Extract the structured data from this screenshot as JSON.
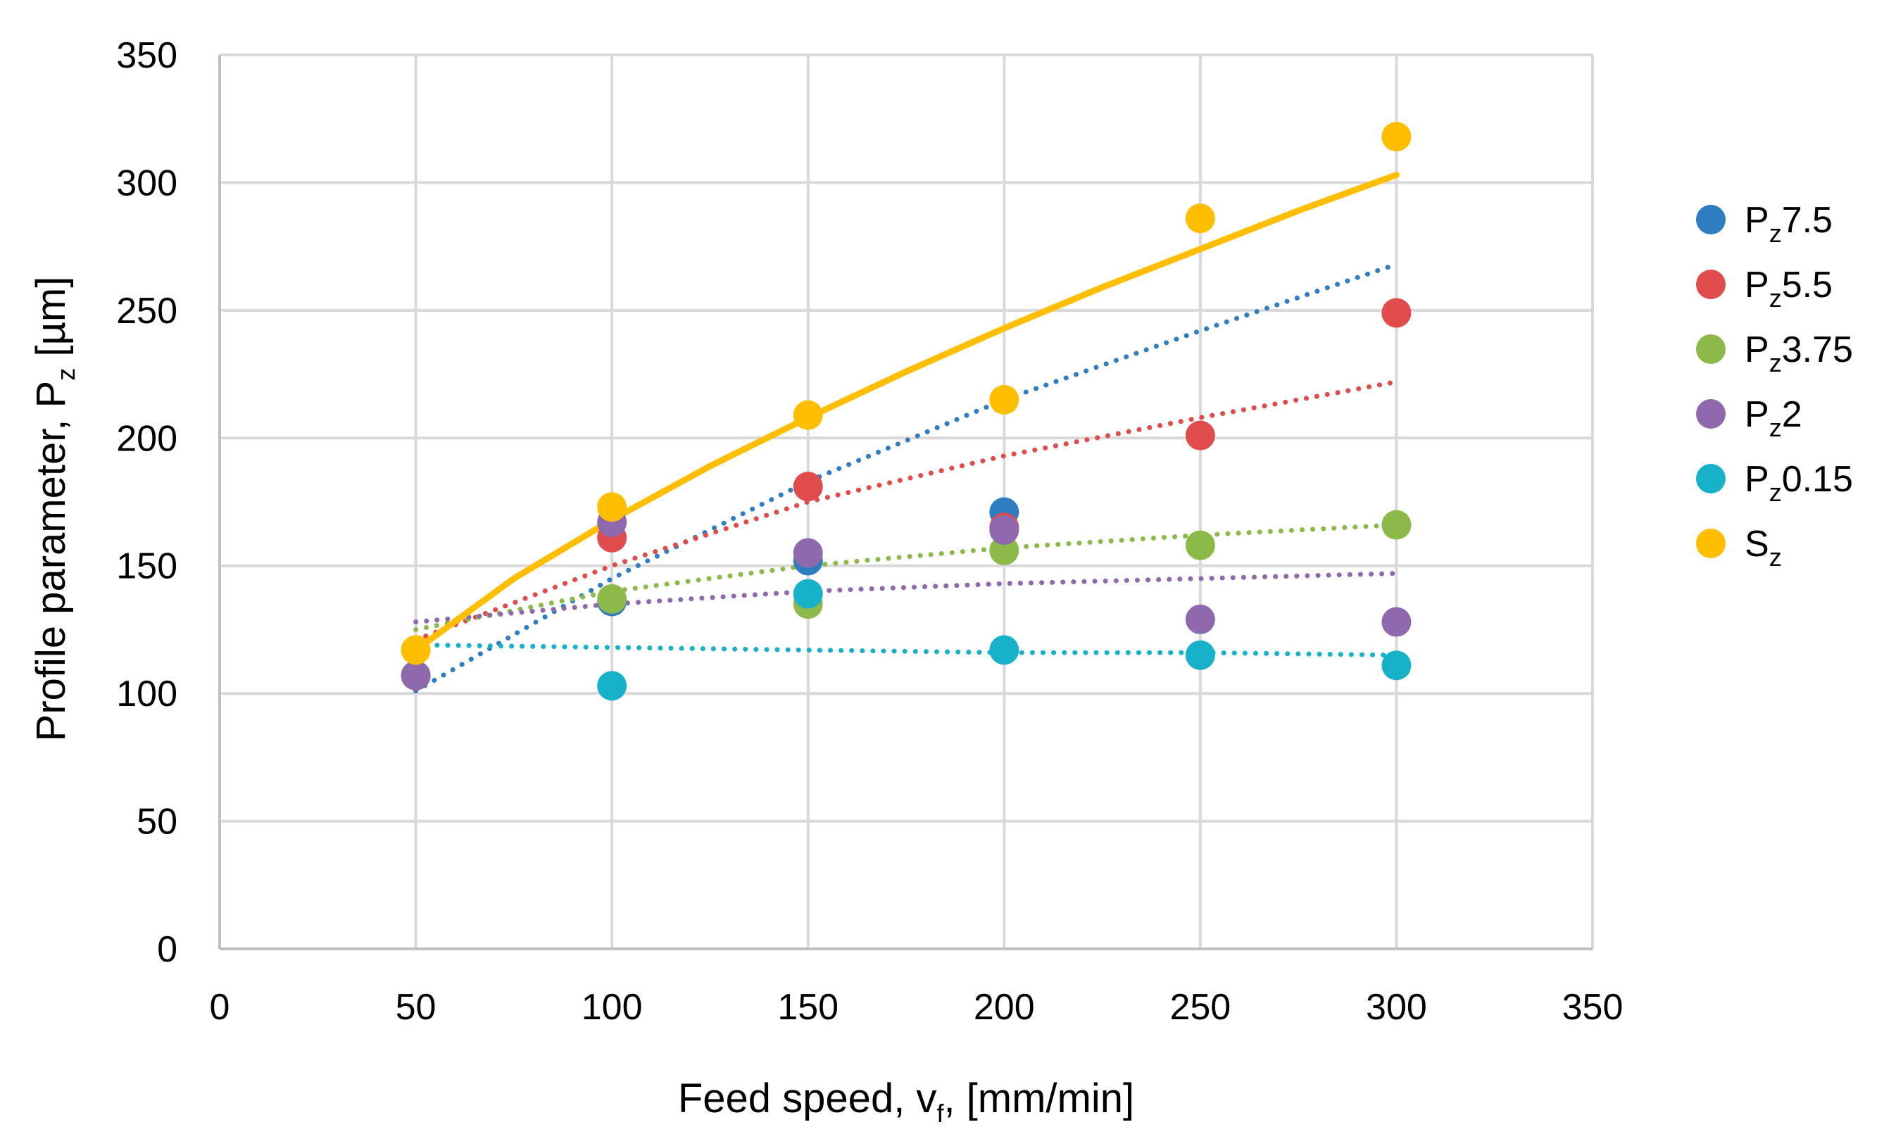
{
  "chart_data": {
    "type": "scatter",
    "title": "",
    "xlabel": {
      "main": "Feed speed, v",
      "sub": "f",
      "tail": ", [mm/min]"
    },
    "ylabel": {
      "main": "Profile parameter, P",
      "sub": "z",
      "tail": " [µm]"
    },
    "xlim": [
      0,
      350
    ],
    "ylim": [
      0,
      350
    ],
    "xticks": [
      0,
      50,
      100,
      150,
      200,
      250,
      300,
      350
    ],
    "yticks": [
      0,
      50,
      100,
      150,
      200,
      250,
      300,
      350
    ],
    "grid": true,
    "legend_position": "right",
    "series": [
      {
        "name": "Pz7.5",
        "label_main": "P",
        "label_sub": "z",
        "label_tail": "7.5",
        "color": "#2E7EC1",
        "x": [
          50,
          100,
          150,
          200
        ],
        "y": [
          107,
          136,
          152,
          171
        ],
        "trend": {
          "style": "dotted",
          "x": [
            50,
            100,
            150,
            200,
            250,
            300
          ],
          "y": [
            101,
            145,
            183,
            215,
            242,
            268
          ]
        }
      },
      {
        "name": "Pz5.5",
        "label_main": "P",
        "label_sub": "z",
        "label_tail": "5.5",
        "color": "#E04B4B",
        "x": [
          50,
          100,
          150,
          200,
          250,
          300
        ],
        "y": [
          107,
          161,
          181,
          165,
          201,
          249
        ],
        "trend": {
          "style": "dotted",
          "x": [
            50,
            100,
            150,
            200,
            250,
            300
          ],
          "y": [
            121,
            150,
            175,
            193,
            208,
            222
          ]
        }
      },
      {
        "name": "Pz3.75",
        "label_main": "P",
        "label_sub": "z",
        "label_tail": "3.75",
        "color": "#8BBA4A",
        "x": [
          50,
          100,
          150,
          200,
          250,
          300
        ],
        "y": [
          107,
          137,
          135,
          156,
          158,
          166
        ],
        "trend": {
          "style": "dotted",
          "x": [
            50,
            100,
            150,
            200,
            250,
            300
          ],
          "y": [
            125,
            140,
            150,
            157,
            162,
            166
          ]
        }
      },
      {
        "name": "Pz2",
        "label_main": "P",
        "label_sub": "z",
        "label_tail": "2",
        "color": "#8E69AD",
        "x": [
          50,
          100,
          150,
          200,
          250,
          300
        ],
        "y": [
          107,
          167,
          155,
          164,
          129,
          128
        ],
        "trend": {
          "style": "dotted",
          "x": [
            50,
            100,
            150,
            200,
            250,
            300
          ],
          "y": [
            128,
            135,
            140,
            143,
            145,
            147
          ]
        }
      },
      {
        "name": "Pz0.15",
        "label_main": "P",
        "label_sub": "z",
        "label_tail": "0.15",
        "color": "#17B1C9",
        "x": [
          100,
          150,
          200,
          250,
          300
        ],
        "y": [
          103,
          139,
          117,
          115,
          111
        ],
        "trend": {
          "style": "dotted",
          "x": [
            50,
            100,
            150,
            200,
            250,
            300
          ],
          "y": [
            119,
            118,
            117,
            116,
            116,
            115
          ]
        }
      },
      {
        "name": "Sz",
        "label_main": "S",
        "label_sub": "z",
        "label_tail": "",
        "color": "#FFBF00",
        "x": [
          50,
          100,
          150,
          200,
          250,
          300
        ],
        "y": [
          117,
          173,
          209,
          215,
          286,
          318
        ],
        "trend": {
          "style": "solid",
          "x": [
            50,
            75,
            100,
            125,
            150,
            175,
            200,
            225,
            250,
            275,
            300
          ],
          "y": [
            117,
            145,
            168,
            189,
            208,
            226,
            243,
            259,
            274,
            289,
            303
          ]
        }
      }
    ]
  }
}
